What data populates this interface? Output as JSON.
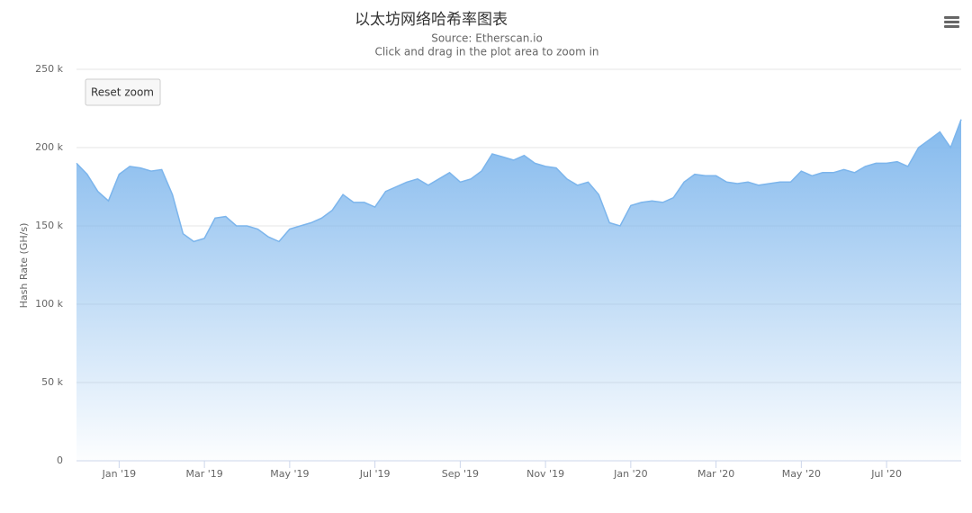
{
  "chart_data": {
    "type": "area",
    "title": "以太坊网络哈希率图表",
    "subtitle": "Source: Etherscan.io",
    "caption": "Click and drag in the plot area to zoom in",
    "reset_button": "Reset zoom",
    "y_label": "Hash Rate (GH/s)",
    "color": "#7cb5ec",
    "grid": true,
    "categories": [
      null,
      null,
      null,
      null,
      "Jan '19",
      null,
      null,
      null,
      null,
      null,
      null,
      null,
      "Mar '19",
      null,
      null,
      null,
      null,
      null,
      null,
      null,
      "May '19",
      null,
      null,
      null,
      null,
      null,
      null,
      null,
      "Jul '19",
      null,
      null,
      null,
      null,
      null,
      null,
      null,
      "Sep '19",
      null,
      null,
      null,
      null,
      null,
      null,
      null,
      "Nov '19",
      null,
      null,
      null,
      null,
      null,
      null,
      null,
      "Jan '20",
      null,
      null,
      null,
      null,
      null,
      null,
      null,
      "Mar '20",
      null,
      null,
      null,
      null,
      null,
      null,
      null,
      "May '20",
      null,
      null,
      null,
      null,
      null,
      null,
      null,
      "Jul '20",
      null,
      null,
      null,
      null,
      null,
      null,
      null
    ],
    "values": [
      190000,
      183000,
      172000,
      166000,
      183000,
      188000,
      187000,
      185000,
      186000,
      170000,
      145000,
      140000,
      142000,
      155000,
      156000,
      150000,
      150000,
      148000,
      143000,
      140000,
      148000,
      150000,
      152000,
      155000,
      160000,
      170000,
      165000,
      165000,
      162000,
      172000,
      175000,
      178000,
      180000,
      176000,
      180000,
      184000,
      178000,
      180000,
      185000,
      196000,
      194000,
      192000,
      195000,
      190000,
      188000,
      187000,
      180000,
      176000,
      178000,
      170000,
      152000,
      150000,
      163000,
      165000,
      166000,
      165000,
      168000,
      178000,
      183000,
      182000,
      182000,
      178000,
      177000,
      178000,
      176000,
      177000,
      178000,
      178000,
      185000,
      182000,
      184000,
      184000,
      186000,
      184000,
      188000,
      190000,
      190000,
      191000,
      188000,
      200000,
      205000,
      210000,
      200000,
      218000
    ],
    "ylim": [
      0,
      250000
    ],
    "yticks": [
      {
        "value": 0,
        "label": "0"
      },
      {
        "value": 50000,
        "label": "50 k"
      },
      {
        "value": 100000,
        "label": "100 k"
      },
      {
        "value": 150000,
        "label": "150 k"
      },
      {
        "value": 200000,
        "label": "200 k"
      },
      {
        "value": 250000,
        "label": "250 k"
      }
    ]
  }
}
